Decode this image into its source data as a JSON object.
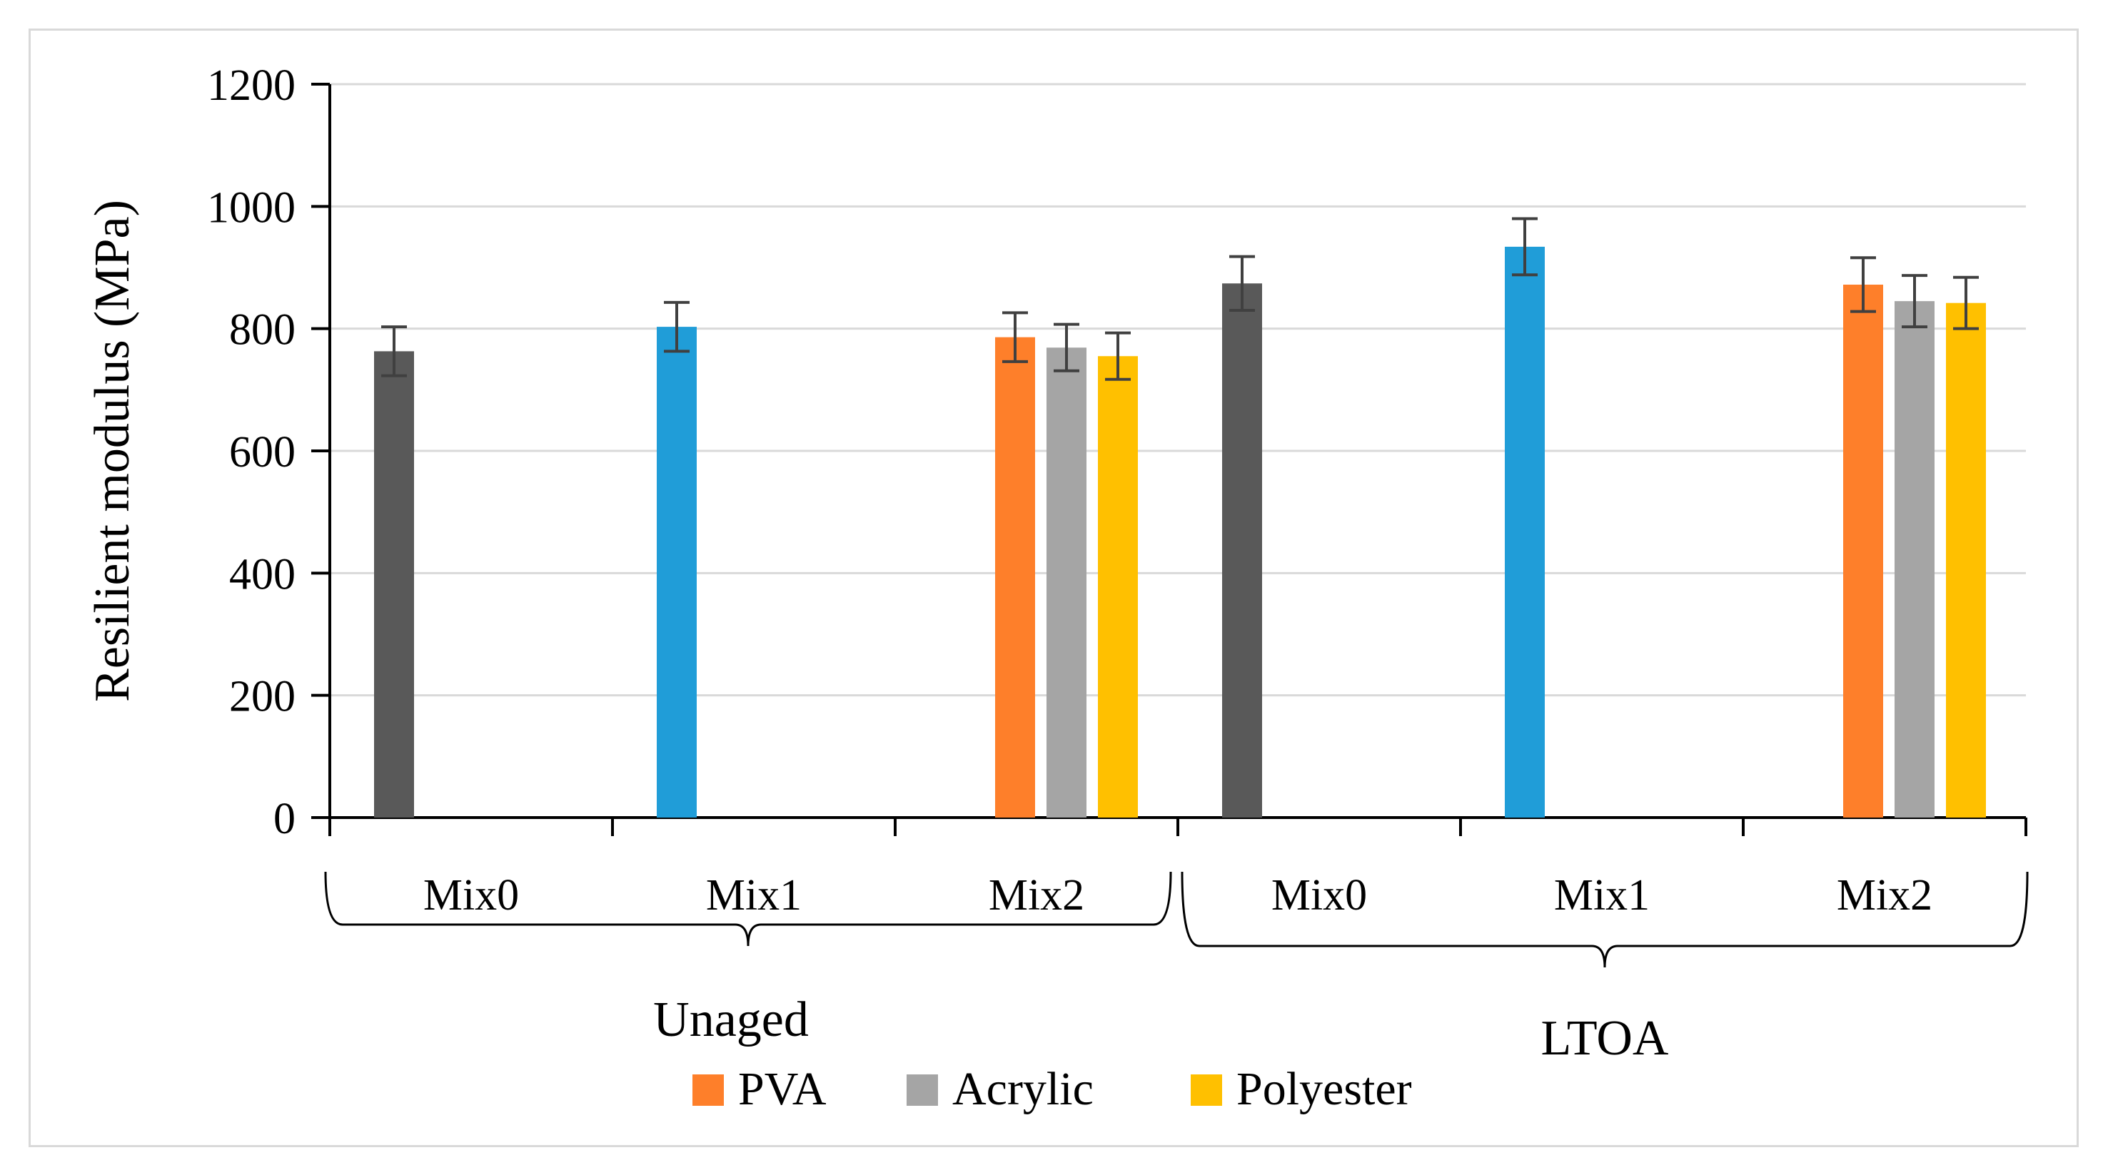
{
  "chart_data": {
    "type": "bar",
    "title": "",
    "ylabel": "Resilient modulus (MPa)",
    "xlabel": "",
    "ylim": [
      0,
      1200
    ],
    "yticks": [
      0,
      200,
      400,
      600,
      800,
      1000,
      1200
    ],
    "grid": true,
    "groups": [
      {
        "label": "Unaged",
        "categories": [
          "Mix0",
          "Mix1",
          "Mix2"
        ]
      },
      {
        "label": "LTOA",
        "categories": [
          "Mix0",
          "Mix1",
          "Mix2"
        ]
      }
    ],
    "bars": [
      {
        "group": "Unaged",
        "category": "Mix0",
        "series": "Mix0",
        "value": 763,
        "error": 40,
        "color": "#595959"
      },
      {
        "group": "Unaged",
        "category": "Mix1",
        "series": "Mix1",
        "value": 803,
        "error": 40,
        "color": "#209dd8"
      },
      {
        "group": "Unaged",
        "category": "Mix2",
        "series": "PVA",
        "value": 786,
        "error": 40,
        "color": "#fe7f2a"
      },
      {
        "group": "Unaged",
        "category": "Mix2",
        "series": "Acrylic",
        "value": 769,
        "error": 38,
        "color": "#a5a5a5"
      },
      {
        "group": "Unaged",
        "category": "Mix2",
        "series": "Polyester",
        "value": 755,
        "error": 38,
        "color": "#ffc000"
      },
      {
        "group": "LTOA",
        "category": "Mix0",
        "series": "Mix0",
        "value": 874,
        "error": 44,
        "color": "#595959"
      },
      {
        "group": "LTOA",
        "category": "Mix1",
        "series": "Mix1",
        "value": 934,
        "error": 46,
        "color": "#209dd8"
      },
      {
        "group": "LTOA",
        "category": "Mix2",
        "series": "PVA",
        "value": 872,
        "error": 44,
        "color": "#fe7f2a"
      },
      {
        "group": "LTOA",
        "category": "Mix2",
        "series": "Acrylic",
        "value": 845,
        "error": 42,
        "color": "#a5a5a5"
      },
      {
        "group": "LTOA",
        "category": "Mix2",
        "series": "Polyester",
        "value": 842,
        "error": 42,
        "color": "#ffc000"
      }
    ],
    "legend": {
      "position": "bottom",
      "entries": [
        {
          "label": "PVA",
          "color": "#fe7f2a"
        },
        {
          "label": "Acrylic",
          "color": "#a5a5a5"
        },
        {
          "label": "Polyester",
          "color": "#ffc000"
        }
      ]
    }
  }
}
